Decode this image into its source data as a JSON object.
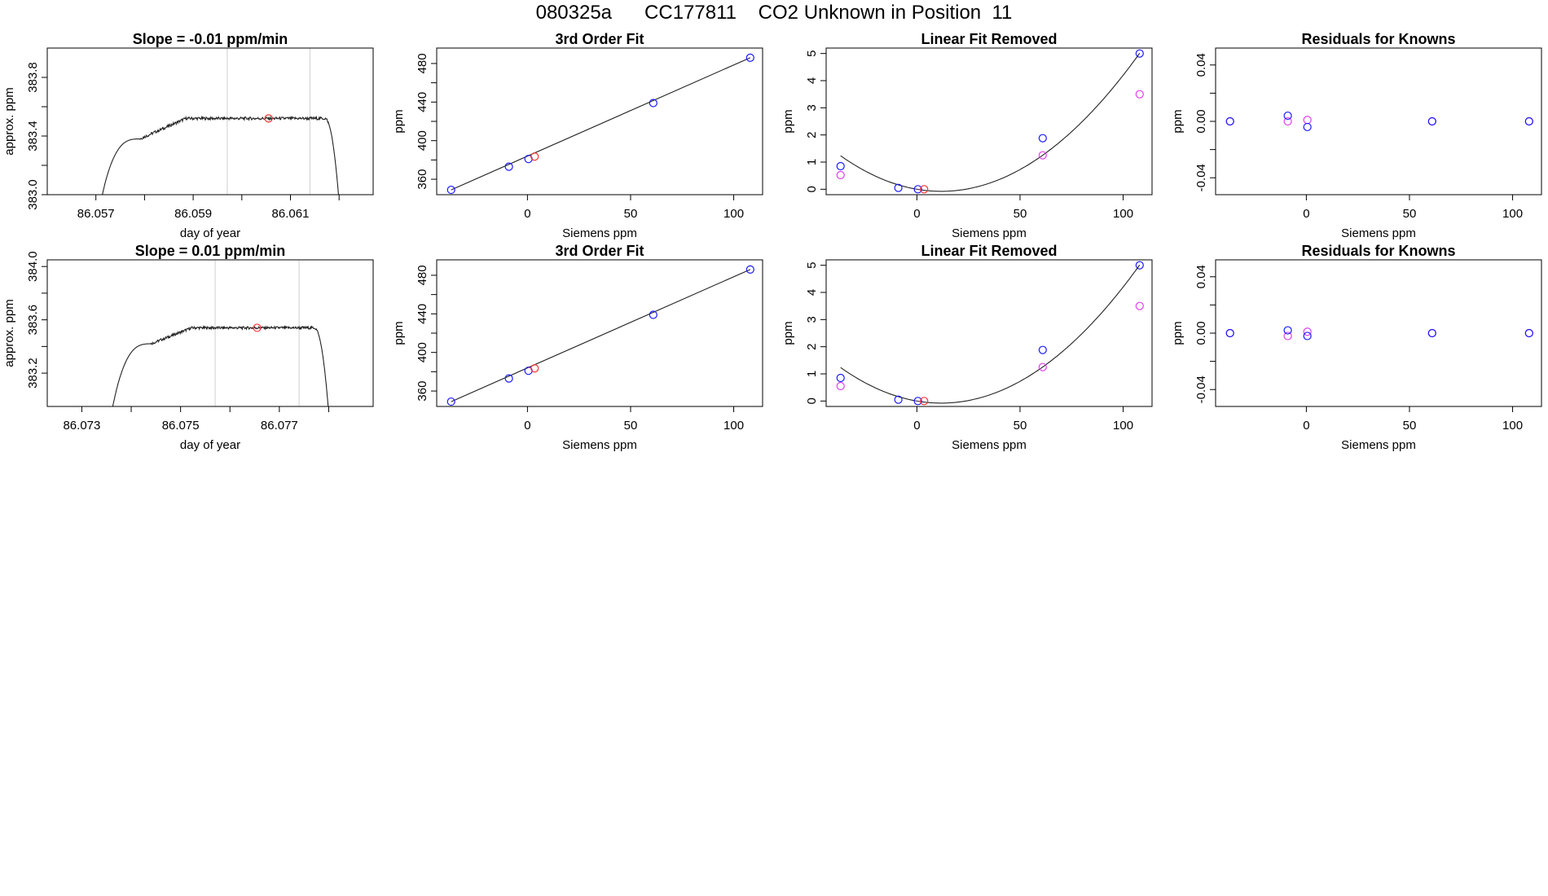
{
  "page_title": "080325a      CC177811    CO2 Unknown in Position  11",
  "colors": {
    "known": "#1a1aff",
    "unknown": "#ff3030",
    "raw": "#e040f0",
    "line": "#222222",
    "guide": "#cfcfcf"
  },
  "chart_data": [
    {
      "id": "r1-timeseries",
      "type": "line",
      "title": "Slope =  -0.01  ppm/min",
      "xlabel": "day of year",
      "ylabel": "approx. ppm",
      "xlim": [
        86.056,
        86.0627
      ],
      "ylim": [
        383.0,
        384.0
      ],
      "xticks": [
        86.057,
        86.058,
        86.059,
        86.06,
        86.061,
        86.062
      ],
      "xtick_labels": [
        "86.057",
        "",
        "86.059",
        "",
        "86.061",
        ""
      ],
      "yticks": [
        383.0,
        383.2,
        383.4,
        383.6,
        383.8
      ],
      "ytick_labels": [
        "383.0",
        "",
        "383.4",
        "",
        "383.8"
      ],
      "vlines": [
        86.0597,
        86.0614
      ],
      "trace": {
        "x_start": 86.0571,
        "x_rise_end": 86.0579,
        "x_fall_start": 86.0617,
        "x_end": 86.062,
        "base": 382.95,
        "rise_to": 383.38,
        "plateau": 383.52,
        "noise": 0.01
      },
      "marker": {
        "x": 86.06055,
        "y": 383.52
      }
    },
    {
      "id": "r1-fit",
      "type": "scatter",
      "title": "3rd Order Fit",
      "xlabel": "Siemens ppm",
      "ylabel": "ppm",
      "xlim": [
        -44,
        114
      ],
      "ylim": [
        344,
        496
      ],
      "xticks": [
        0,
        50,
        100
      ],
      "xtick_labels": [
        "0",
        "50",
        "100"
      ],
      "yticks": [
        360,
        380,
        400,
        420,
        440,
        460,
        480
      ],
      "ytick_labels": [
        "360",
        "",
        "400",
        "",
        "440",
        "",
        "480"
      ],
      "known": {
        "x": [
          -37,
          -9,
          0.5,
          61,
          108
        ],
        "y": [
          349,
          373,
          381,
          439,
          486
        ]
      },
      "unknown": {
        "x": [
          3.5
        ],
        "y": [
          383.5
        ]
      },
      "fit_line": {
        "x": [
          -37,
          108
        ],
        "y": [
          349,
          486
        ]
      }
    },
    {
      "id": "r1-linear-removed",
      "type": "scatter",
      "title": "Linear Fit Removed",
      "xlabel": "Siemens ppm",
      "ylabel": "ppm",
      "xlim": [
        -44,
        114
      ],
      "ylim": [
        -0.2,
        5.2
      ],
      "xticks": [
        0,
        50,
        100
      ],
      "xtick_labels": [
        "0",
        "50",
        "100"
      ],
      "yticks": [
        0,
        1,
        2,
        3,
        4,
        5
      ],
      "ytick_labels": [
        "0",
        "1",
        "2",
        "3",
        "4",
        "5"
      ],
      "known": {
        "x": [
          -37,
          -9,
          0.5,
          61,
          108
        ],
        "y": [
          0.85,
          0.05,
          0.0,
          1.88,
          5.0
        ]
      },
      "raw": {
        "x": [
          -37,
          61,
          108
        ],
        "y": [
          0.52,
          1.25,
          3.5
        ]
      },
      "unknown": {
        "x": [
          3.5
        ],
        "y": [
          0.0
        ]
      },
      "curve": {
        "poly": [
          0.0,
          -0.013,
          0.00055
        ]
      }
    },
    {
      "id": "r1-residuals",
      "type": "scatter",
      "title": "Residuals for Knowns",
      "xlabel": "Siemens ppm",
      "ylabel": "ppm",
      "xlim": [
        -44,
        114
      ],
      "ylim": [
        -0.052,
        0.052
      ],
      "xticks": [
        0,
        50,
        100
      ],
      "xtick_labels": [
        "0",
        "50",
        "100"
      ],
      "yticks": [
        -0.04,
        -0.02,
        0.0,
        0.02,
        0.04
      ],
      "ytick_labels": [
        "-0.04",
        "",
        "0.00",
        "",
        "0.04"
      ],
      "known": {
        "x": [
          -37,
          -9,
          0.5,
          61,
          108
        ],
        "y": [
          0.0,
          0.004,
          -0.004,
          0.0,
          0.0
        ]
      },
      "raw": {
        "x": [
          -37,
          -9,
          0.5,
          61,
          108
        ],
        "y": [
          0.0,
          0.0,
          0.001,
          0.0,
          0.0
        ]
      }
    },
    {
      "id": "r2-timeseries",
      "type": "line",
      "title": "Slope =  0.01  ppm/min",
      "xlabel": "day of year",
      "ylabel": "approx. ppm",
      "xlim": [
        86.0723,
        86.0789
      ],
      "ylim": [
        382.95,
        384.05
      ],
      "xticks": [
        86.073,
        86.074,
        86.075,
        86.076,
        86.077,
        86.078
      ],
      "xtick_labels": [
        "86.073",
        "",
        "86.075",
        "",
        "86.077",
        ""
      ],
      "yticks": [
        383.2,
        383.4,
        383.6,
        383.8,
        384.0
      ],
      "ytick_labels": [
        "383.2",
        "",
        "383.6",
        "",
        "384.0"
      ],
      "vlines": [
        86.0757,
        86.0774
      ],
      "trace": {
        "x_start": 86.0736,
        "x_rise_end": 86.0744,
        "x_fall_start": 86.0777,
        "x_end": 86.078,
        "base": 382.9,
        "rise_to": 383.42,
        "plateau": 383.54,
        "noise": 0.01
      },
      "marker": {
        "x": 86.07655,
        "y": 383.54
      }
    },
    {
      "id": "r2-fit",
      "type": "scatter",
      "title": "3rd Order Fit",
      "xlabel": "Siemens ppm",
      "ylabel": "ppm",
      "xlim": [
        -44,
        114
      ],
      "ylim": [
        344,
        496
      ],
      "xticks": [
        0,
        50,
        100
      ],
      "xtick_labels": [
        "0",
        "50",
        "100"
      ],
      "yticks": [
        360,
        380,
        400,
        420,
        440,
        460,
        480
      ],
      "ytick_labels": [
        "360",
        "",
        "400",
        "",
        "440",
        "",
        "480"
      ],
      "known": {
        "x": [
          -37,
          -9,
          0.5,
          61,
          108
        ],
        "y": [
          349,
          373,
          381,
          439,
          486
        ]
      },
      "unknown": {
        "x": [
          3.5
        ],
        "y": [
          383.5
        ]
      },
      "fit_line": {
        "x": [
          -37,
          108
        ],
        "y": [
          349,
          486
        ]
      }
    },
    {
      "id": "r2-linear-removed",
      "type": "scatter",
      "title": "Linear Fit Removed",
      "xlabel": "Siemens ppm",
      "ylabel": "ppm",
      "xlim": [
        -44,
        114
      ],
      "ylim": [
        -0.2,
        5.2
      ],
      "xticks": [
        0,
        50,
        100
      ],
      "xtick_labels": [
        "0",
        "50",
        "100"
      ],
      "yticks": [
        0,
        1,
        2,
        3,
        4,
        5
      ],
      "ytick_labels": [
        "0",
        "1",
        "2",
        "3",
        "4",
        "5"
      ],
      "known": {
        "x": [
          -37,
          -9,
          0.5,
          61,
          108
        ],
        "y": [
          0.85,
          0.05,
          0.0,
          1.88,
          5.0
        ]
      },
      "raw": {
        "x": [
          -37,
          61,
          108
        ],
        "y": [
          0.55,
          1.25,
          3.5
        ]
      },
      "unknown": {
        "x": [
          3.5
        ],
        "y": [
          0.0
        ]
      },
      "curve": {
        "poly": [
          0.0,
          -0.013,
          0.00055
        ]
      }
    },
    {
      "id": "r2-residuals",
      "type": "scatter",
      "title": "Residuals for Knowns",
      "xlabel": "Siemens ppm",
      "ylabel": "ppm",
      "xlim": [
        -44,
        114
      ],
      "ylim": [
        -0.052,
        0.052
      ],
      "xticks": [
        0,
        50,
        100
      ],
      "xtick_labels": [
        "0",
        "50",
        "100"
      ],
      "yticks": [
        -0.04,
        -0.02,
        0.0,
        0.02,
        0.04
      ],
      "ytick_labels": [
        "-0.04",
        "",
        "0.00",
        "",
        "0.04"
      ],
      "known": {
        "x": [
          -37,
          -9,
          0.5,
          61,
          108
        ],
        "y": [
          0.0,
          0.002,
          -0.002,
          0.0,
          0.0
        ]
      },
      "raw": {
        "x": [
          -37,
          -9,
          0.5,
          61,
          108
        ],
        "y": [
          0.0,
          -0.002,
          0.001,
          0.0,
          0.0
        ]
      }
    }
  ]
}
